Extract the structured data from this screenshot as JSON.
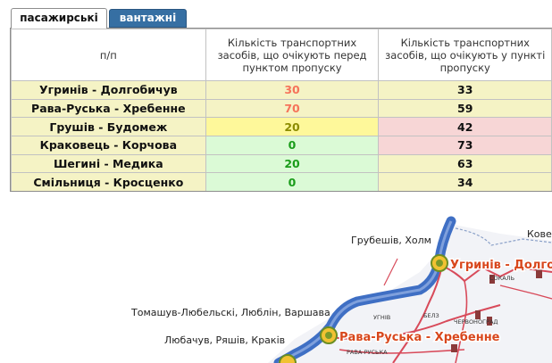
{
  "tabs": [
    {
      "label": "пасажирські",
      "active": true
    },
    {
      "label": "вантажні",
      "active": false
    }
  ],
  "table": {
    "columns": [
      "п/п",
      "Кількість транспортних засобів, що очікують перед пунктом пропуску",
      "Кількість транспортних засобів, що очікують у пункті пропуску"
    ],
    "rows": [
      {
        "name": "Угринів - Долгобичув",
        "waiting_before": "30",
        "waiting_in": "33",
        "before_color": "#f6735a",
        "before_bg": "#f5f3c5",
        "in_bg": "#f5f3c5"
      },
      {
        "name": "Рава-Руська - Хребенне",
        "waiting_before": "70",
        "waiting_in": "59",
        "before_color": "#f6735a",
        "before_bg": "#f5f3c5",
        "in_bg": "#f5f3c5"
      },
      {
        "name": "Грушів - Будомеж",
        "waiting_before": "20",
        "waiting_in": "42",
        "before_color": "#8c8c00",
        "before_bg": "#fef89a",
        "in_bg": "#f7d6d6"
      },
      {
        "name": "Краковець - Корчова",
        "waiting_before": "0",
        "waiting_in": "73",
        "before_color": "#1a9c1a",
        "before_bg": "#dbfad6",
        "in_bg": "#f7d6d6"
      },
      {
        "name": "Шегині - Медика",
        "waiting_before": "20",
        "waiting_in": "63",
        "before_color": "#1a9c1a",
        "before_bg": "#dbfad6",
        "in_bg": "#f5f3c5"
      },
      {
        "name": "Смільниця - Кросценко",
        "waiting_before": "0",
        "waiting_in": "34",
        "before_color": "#1a9c1a",
        "before_bg": "#dbfad6",
        "in_bg": "#f5f3c5"
      }
    ]
  },
  "map": {
    "destinations": {
      "hrubieszow": "Грубешів, Холм",
      "kovel": "Ковел",
      "tomaszow": "Томашув-Любельскі, Люблін, Варшава",
      "lubaczow": "Любачув, Ряшів, Краків"
    },
    "crossings": {
      "uhryniv": "Угринів - Долго",
      "rava": "Рава-Руська - Хребенне"
    },
    "towns": {
      "sokal": "СОКАЛЬ",
      "uhniv": "УГНІВ",
      "belz": "БЕЛЗ",
      "chervonohrad": "ЧЕРВОНОГРАД",
      "rava_town": "РАВА-РУСЬКА"
    }
  }
}
